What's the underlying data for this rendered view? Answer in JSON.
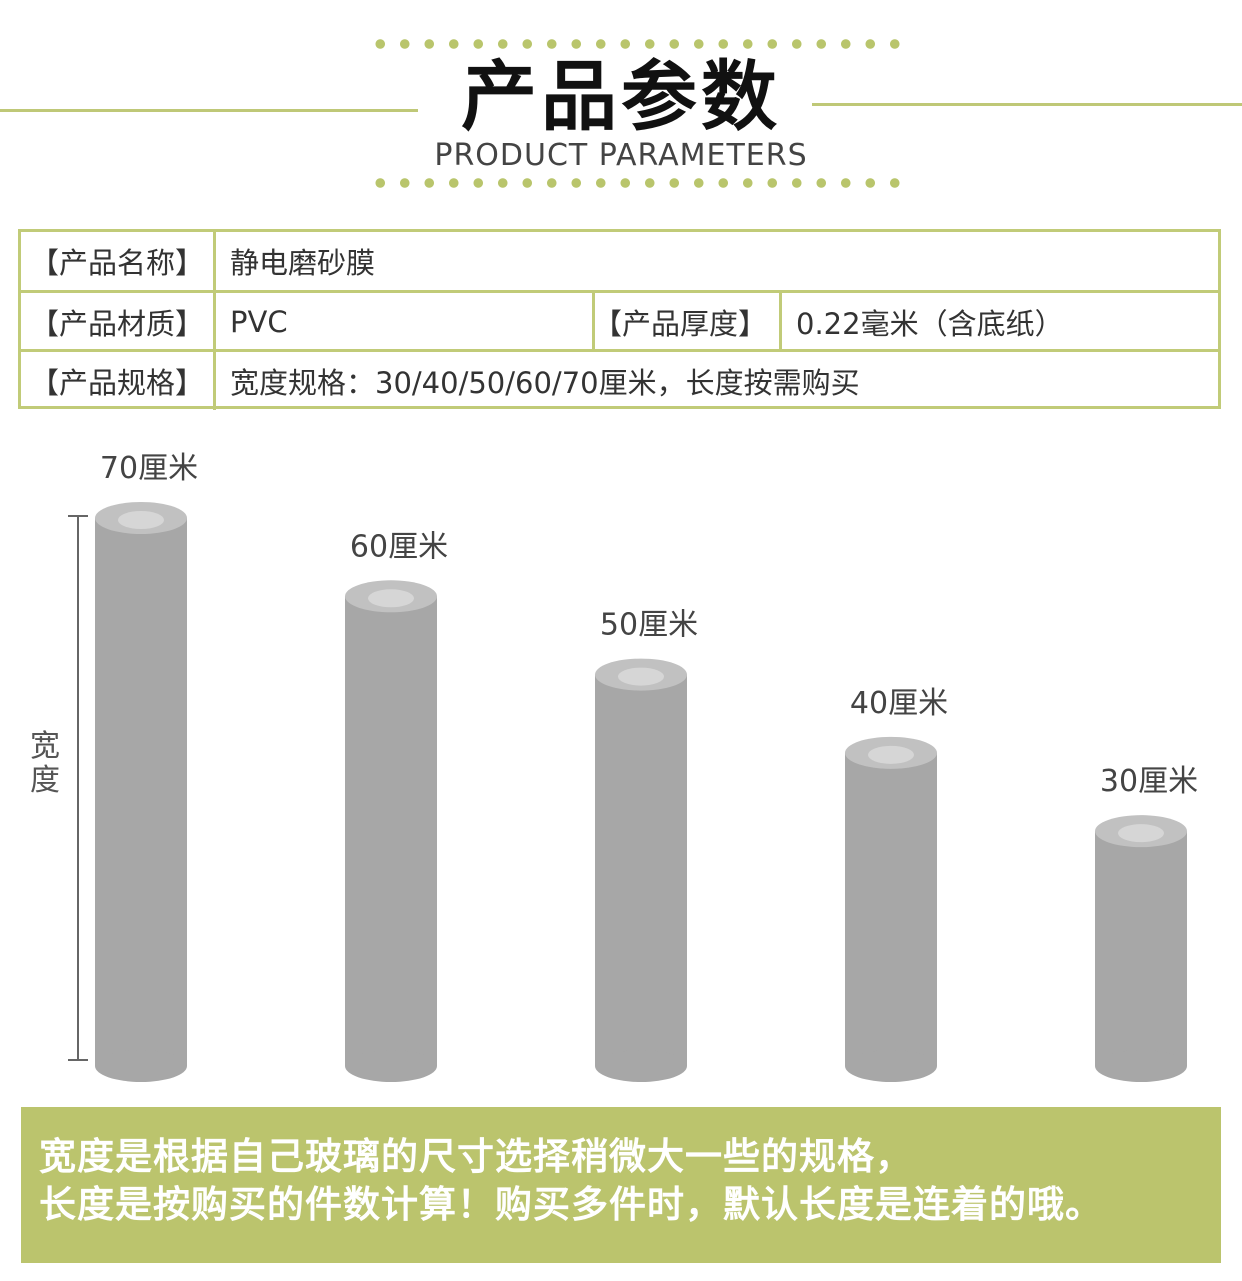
{
  "header": {
    "title": "产品参数",
    "subtitle": "PRODUCT PARAMETERS"
  },
  "params": {
    "name_label": "【产品名称】",
    "name_value": "静电磨砂膜",
    "material_label": "【产品材质】",
    "material_value": "PVC",
    "thickness_label": "【产品厚度】",
    "thickness_value": "0.22毫米（含底纸）",
    "spec_label": "【产品规格】",
    "spec_value": "宽度规格：30/40/50/60/70厘米，长度按需购买"
  },
  "dimension_label": "宽度",
  "chart_data": {
    "type": "bar",
    "unit": "厘米",
    "categories": [
      "70厘米",
      "60厘米",
      "50厘米",
      "40厘米",
      "30厘米"
    ],
    "values": [
      70,
      60,
      50,
      40,
      30
    ],
    "ylabel": "宽度",
    "colors": {
      "bar": "#a7a7a7",
      "bar_top": "#c1c1c1",
      "hole": "#d6d6d6"
    }
  },
  "note": {
    "line1": "宽度是根据自己玻璃的尺寸选择稍微大一些的规格，",
    "line2": "长度是按购买的件数计算！购买多件时，默认长度是连着的哦。"
  }
}
